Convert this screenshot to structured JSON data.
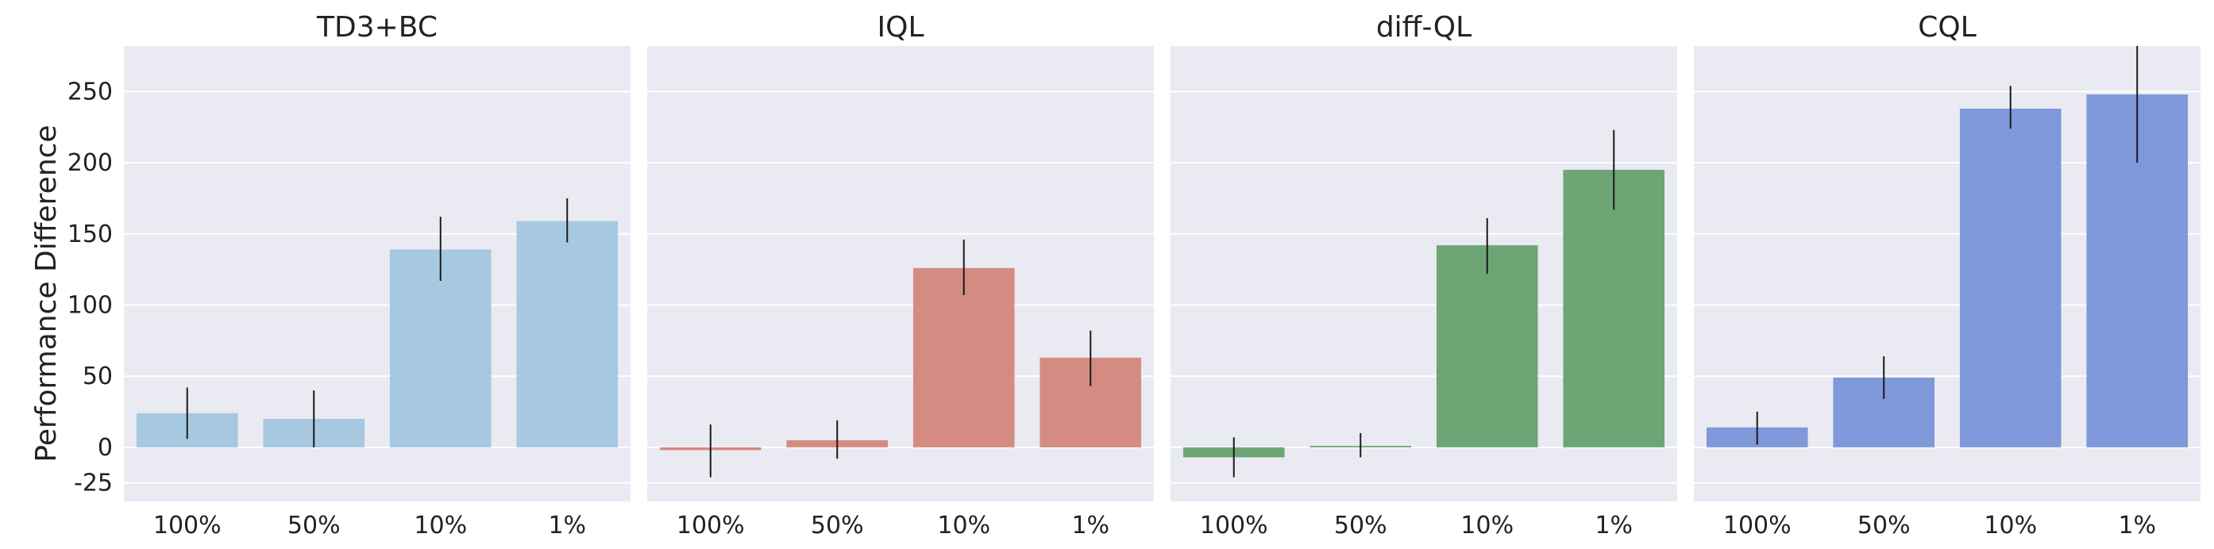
{
  "chart_data": {
    "type": "bar",
    "ylabel": "Performance Difference",
    "ylim": [
      -38,
      282
    ],
    "yticks": [
      -25,
      0,
      50,
      100,
      150,
      200,
      250
    ],
    "grid": true,
    "categories": [
      "100%",
      "50%",
      "10%",
      "1%"
    ],
    "panels": [
      {
        "title": "TD3+BC",
        "color": "#a6c8e0",
        "values": [
          24,
          20,
          139,
          159
        ],
        "err_low": [
          6,
          0,
          117,
          144
        ],
        "err_high": [
          42,
          40,
          162,
          175
        ]
      },
      {
        "title": "IQL",
        "color": "#d48c82",
        "values": [
          -2,
          5,
          126,
          63
        ],
        "err_low": [
          -21,
          -8,
          107,
          43
        ],
        "err_high": [
          16,
          19,
          146,
          82
        ]
      },
      {
        "title": "diff-QL",
        "color": "#6ea575",
        "values": [
          -7,
          1,
          142,
          195
        ],
        "err_low": [
          -21,
          -7,
          122,
          167
        ],
        "err_high": [
          7,
          10,
          161,
          223
        ]
      },
      {
        "title": "CQL",
        "color": "#7f98da",
        "values": [
          14,
          49,
          238,
          248
        ],
        "err_low": [
          2,
          34,
          224,
          200
        ],
        "err_high": [
          25,
          64,
          254,
          282
        ]
      }
    ]
  }
}
